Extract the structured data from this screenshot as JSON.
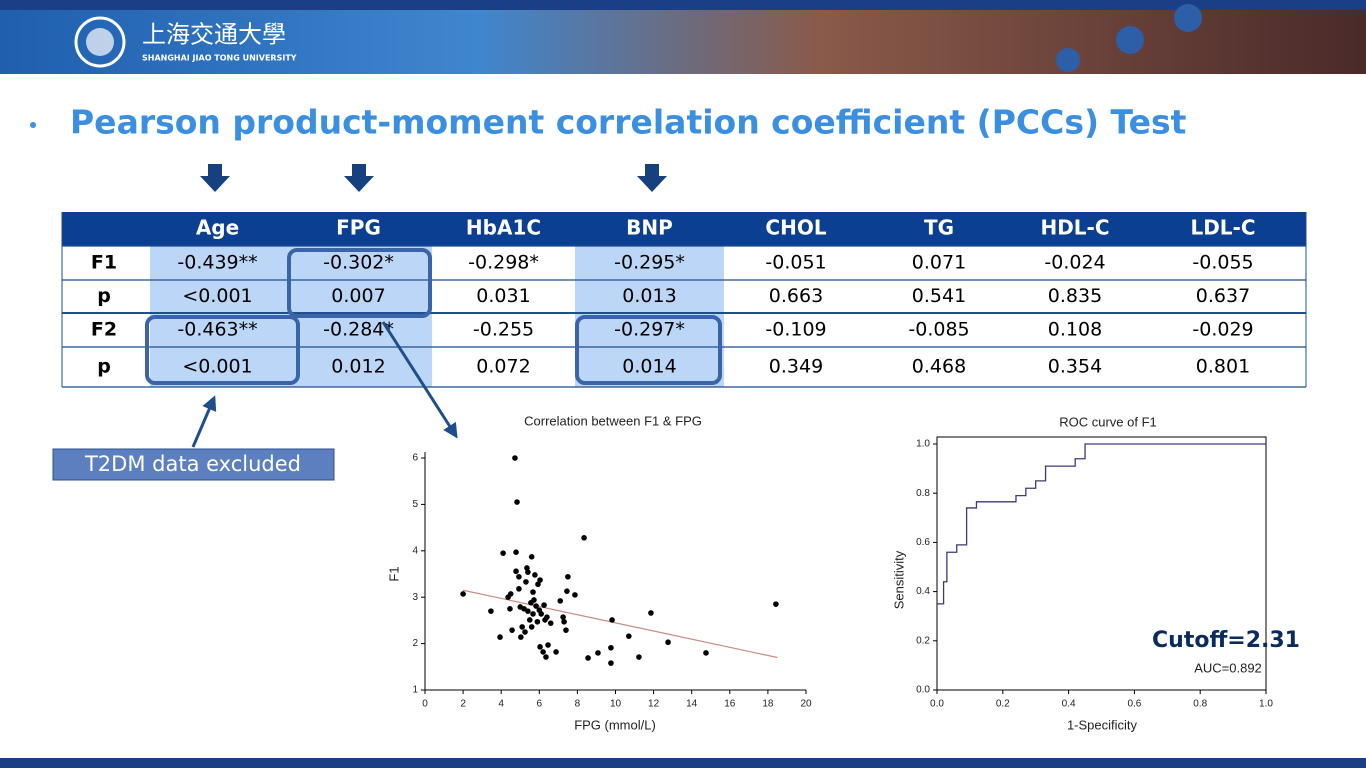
{
  "header": {
    "university_cn": "上海交通大學",
    "university_en": "SHANGHAI JIAO TONG UNIVERSITY"
  },
  "title": "Pearson product-moment correlation coefficient (PCCs) Test",
  "table": {
    "header": [
      "Age",
      "FPG",
      "HbA1C",
      "BNP",
      "CHOL",
      "TG",
      "HDL-C",
      "LDL-C"
    ],
    "rows": [
      {
        "label": "F1",
        "values": [
          "-0.439**",
          "-0.302*",
          "-0.298*",
          "-0.295*",
          "-0.051",
          "0.071",
          "-0.024",
          "-0.055"
        ]
      },
      {
        "label": "p",
        "values": [
          "<0.001",
          "0.007",
          "0.031",
          "0.013",
          "0.663",
          "0.541",
          "0.835",
          "0.637"
        ]
      },
      {
        "label": "F2",
        "values": [
          "-0.463**",
          "-0.284*",
          "-0.255",
          "-0.297*",
          "-0.109",
          "-0.085",
          "0.108",
          "-0.029"
        ]
      },
      {
        "label": "p",
        "values": [
          "<0.001",
          "0.012",
          "0.072",
          "0.014",
          "0.349",
          "0.468",
          "0.354",
          "0.801"
        ]
      }
    ]
  },
  "callout": "T2DM data excluded",
  "chart_data": [
    {
      "type": "scatter",
      "title": "Correlation between F1 & FPG",
      "x_label": "FPG (mmol/L)",
      "y_label": "F1",
      "color": "#000000",
      "x": [
        2.0,
        3.46,
        3.94,
        4.1,
        4.36,
        4.5,
        4.46,
        4.57,
        4.72,
        4.78,
        4.83,
        4.78,
        4.93,
        4.93,
        5.0,
        5.03,
        5.1,
        5.2,
        5.25,
        5.3,
        5.35,
        5.4,
        5.4,
        5.5,
        5.56,
        5.6,
        5.6,
        5.67,
        5.67,
        5.72,
        5.77,
        5.83,
        5.9,
        5.93,
        6.0,
        6.04,
        6.04,
        6.1,
        6.2,
        6.25,
        6.3,
        6.35,
        6.4,
        6.46,
        6.6,
        6.88,
        7.1,
        7.25,
        7.4,
        7.45,
        7.5,
        7.3,
        7.87,
        8.35,
        8.56,
        9.08,
        9.82,
        9.76,
        9.76,
        10.7,
        11.23,
        11.86,
        12.76,
        14.75,
        18.42
      ],
      "y": [
        3.07,
        2.7,
        2.14,
        3.95,
        3.0,
        3.07,
        2.75,
        2.29,
        6.0,
        3.97,
        5.05,
        3.56,
        3.44,
        3.18,
        2.79,
        2.14,
        2.36,
        2.75,
        2.25,
        3.33,
        3.63,
        2.7,
        3.54,
        2.51,
        2.88,
        2.36,
        3.87,
        3.11,
        2.64,
        2.94,
        3.48,
        2.81,
        2.47,
        3.28,
        2.72,
        3.37,
        1.93,
        2.64,
        1.82,
        2.83,
        2.51,
        1.71,
        2.57,
        1.97,
        2.44,
        1.82,
        2.92,
        2.57,
        2.29,
        3.13,
        3.44,
        2.47,
        3.05,
        4.28,
        1.69,
        1.8,
        2.51,
        1.91,
        1.58,
        2.16,
        1.71,
        2.66,
        2.03,
        1.8,
        2.85
      ],
      "fit_line": {
        "x": [
          2.0,
          18.5
        ],
        "y": [
          3.15,
          1.7
        ],
        "color": "#c98a82"
      },
      "xlim": [
        0,
        20
      ],
      "ylim": [
        1,
        6
      ],
      "xticks": [
        0,
        2,
        4,
        6,
        8,
        10,
        12,
        14,
        16,
        18,
        20
      ],
      "yticks": [
        1,
        2,
        3,
        4,
        5,
        6
      ]
    },
    {
      "type": "line",
      "title": "ROC curve of F1",
      "x_label": "1-Specificity",
      "y_label": "Sensitivity",
      "color": "#3a3a78",
      "x": [
        0,
        0.02,
        0.02,
        0.03,
        0.03,
        0.06,
        0.06,
        0.09,
        0.09,
        0.12,
        0.12,
        0.24,
        0.24,
        0.27,
        0.27,
        0.3,
        0.3,
        0.33,
        0.33,
        0.42,
        0.42,
        0.45,
        0.45,
        1.0
      ],
      "y": [
        0.35,
        0.35,
        0.44,
        0.44,
        0.56,
        0.56,
        0.59,
        0.59,
        0.74,
        0.74,
        0.765,
        0.765,
        0.79,
        0.79,
        0.82,
        0.82,
        0.85,
        0.85,
        0.91,
        0.91,
        0.94,
        0.94,
        1.0,
        1.0
      ],
      "xlim": [
        0,
        1
      ],
      "ylim": [
        0,
        1
      ],
      "xticks": [
        {
          "value": 0,
          "label": "0.0"
        },
        0.2,
        0.4,
        0.6,
        0.8,
        {
          "value": 1,
          "label": "1.0"
        }
      ],
      "yticks": [
        {
          "value": 0,
          "label": "0.0"
        },
        0.2,
        0.4,
        0.6,
        0.8,
        {
          "value": 1,
          "label": "1.0"
        }
      ],
      "cutoff_label": "Cutoff=2.31",
      "auc_label": "AUC=0.892"
    }
  ]
}
